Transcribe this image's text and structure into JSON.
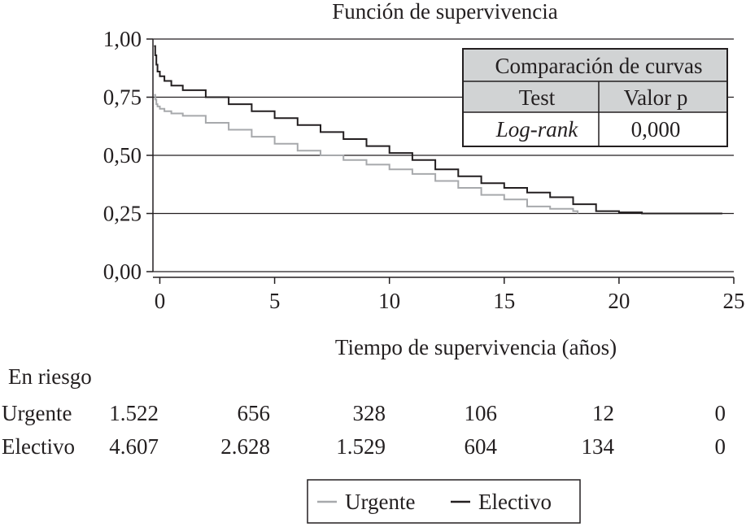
{
  "chart_data": {
    "type": "line",
    "title": "Función de supervivencia",
    "xlabel": "Tiempo de supervivencia (años)",
    "ylabel": "",
    "xlim": [
      -0.3,
      25
    ],
    "ylim": [
      0,
      1
    ],
    "xticks": [
      0,
      5,
      10,
      15,
      20,
      25
    ],
    "xtick_labels": [
      "0",
      "5",
      "10",
      "15",
      "20",
      "25"
    ],
    "yticks": [
      0,
      0.25,
      0.5,
      0.75,
      1
    ],
    "ytick_labels": [
      "0,00",
      "0,25",
      "0,50",
      "0,75",
      "1,00"
    ],
    "grid": "horizontal",
    "legend": "bottom",
    "series": [
      {
        "name": "Urgente",
        "color": "#a7a9ac",
        "x": [
          -0.25,
          -0.2,
          -0.15,
          -0.1,
          0,
          0.2,
          0.5,
          1,
          2,
          3,
          4,
          5,
          6,
          7,
          8,
          9,
          10,
          11,
          12,
          13,
          14,
          15,
          16,
          17,
          18,
          18.2
        ],
        "y": [
          0.76,
          0.74,
          0.72,
          0.71,
          0.7,
          0.69,
          0.68,
          0.67,
          0.64,
          0.61,
          0.58,
          0.55,
          0.52,
          0.5,
          0.48,
          0.46,
          0.44,
          0.42,
          0.39,
          0.36,
          0.33,
          0.31,
          0.28,
          0.27,
          0.26,
          0.25
        ]
      },
      {
        "name": "Electivo",
        "color": "#231f20",
        "x": [
          -0.25,
          -0.2,
          -0.15,
          -0.1,
          0,
          0.2,
          0.5,
          1,
          2,
          3,
          4,
          5,
          6,
          7,
          8,
          9,
          10,
          11,
          12,
          13,
          14,
          15,
          16,
          17,
          18,
          19,
          20,
          21,
          22,
          23,
          24.5
        ],
        "y": [
          0.97,
          0.93,
          0.89,
          0.86,
          0.84,
          0.82,
          0.8,
          0.78,
          0.75,
          0.72,
          0.69,
          0.66,
          0.63,
          0.6,
          0.57,
          0.54,
          0.51,
          0.48,
          0.44,
          0.41,
          0.38,
          0.36,
          0.34,
          0.32,
          0.29,
          0.26,
          0.255,
          0.25,
          0.25,
          0.25,
          0.25
        ]
      }
    ],
    "comparison_table": {
      "title": "Comparación de curvas",
      "headers": [
        "Test",
        "Valor p"
      ],
      "rows": [
        [
          "Log-rank",
          "0,000"
        ]
      ]
    },
    "at_risk": {
      "title": "En riesgo",
      "rows": [
        {
          "name": "Urgente",
          "values": [
            "1.522",
            "656",
            "328",
            "106",
            "12",
            "0"
          ]
        },
        {
          "name": "Electivo",
          "values": [
            "4.607",
            "2.628",
            "1.529",
            "604",
            "134",
            "0"
          ]
        }
      ]
    }
  }
}
